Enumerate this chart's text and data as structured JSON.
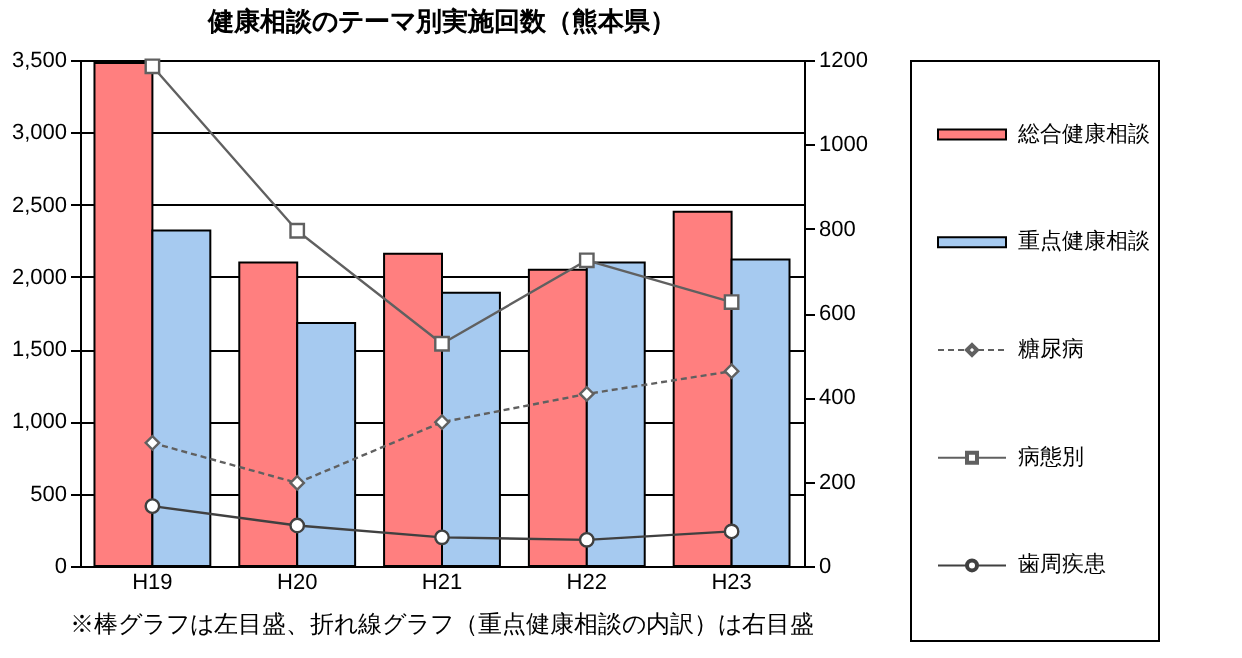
{
  "chart_data": {
    "type": "bar",
    "title": "健康相談のテーマ別実施回数（熊本県）",
    "categories": [
      "H19",
      "H20",
      "H21",
      "H22",
      "H23"
    ],
    "series": [
      {
        "name": "総合健康相談",
        "color": "#ff7f7f",
        "values": [
          3480,
          2100,
          2160,
          2050,
          2450
        ]
      },
      {
        "name": "重点健康相談",
        "color": "#a6caf0",
        "values": [
          2320,
          1680,
          1890,
          2100,
          2120
        ]
      },
      {
        "name": "糖尿病",
        "type": "line",
        "axis": "y2",
        "color": "#606060",
        "marker": "diamond",
        "line_style": "dashed",
        "values": [
          292,
          197,
          341,
          408,
          462
        ]
      },
      {
        "name": "病態別",
        "type": "line",
        "axis": "y2",
        "color": "#606060",
        "marker": "square",
        "line_style": "solid",
        "values": [
          1185,
          795,
          527,
          725,
          626
        ]
      },
      {
        "name": "歯周疾患",
        "type": "line",
        "axis": "y2",
        "color": "#404040",
        "marker": "circle",
        "line_style": "solid",
        "values": [
          142,
          96,
          68,
          62,
          82
        ]
      }
    ],
    "ylim": [
      0,
      3500
    ],
    "yticks": [
      0,
      500,
      {
        "value": 1000,
        "label": "1,000"
      },
      {
        "value": 1500,
        "label": "1,500"
      },
      {
        "value": 2000,
        "label": "2,000"
      },
      {
        "value": 2500,
        "label": "2,500"
      },
      {
        "value": 3000,
        "label": "3,000"
      },
      {
        "value": 3500,
        "label": "3,500"
      }
    ],
    "y2lim": [
      0,
      1200
    ],
    "y2ticks": [
      0,
      200,
      400,
      600,
      800,
      1000,
      1200
    ],
    "grid": "y",
    "legend": "right",
    "annotations": [
      "※棒グラフは左目盛、折れ線グラフ（重点健康相談の内訳）は右目盛"
    ]
  }
}
